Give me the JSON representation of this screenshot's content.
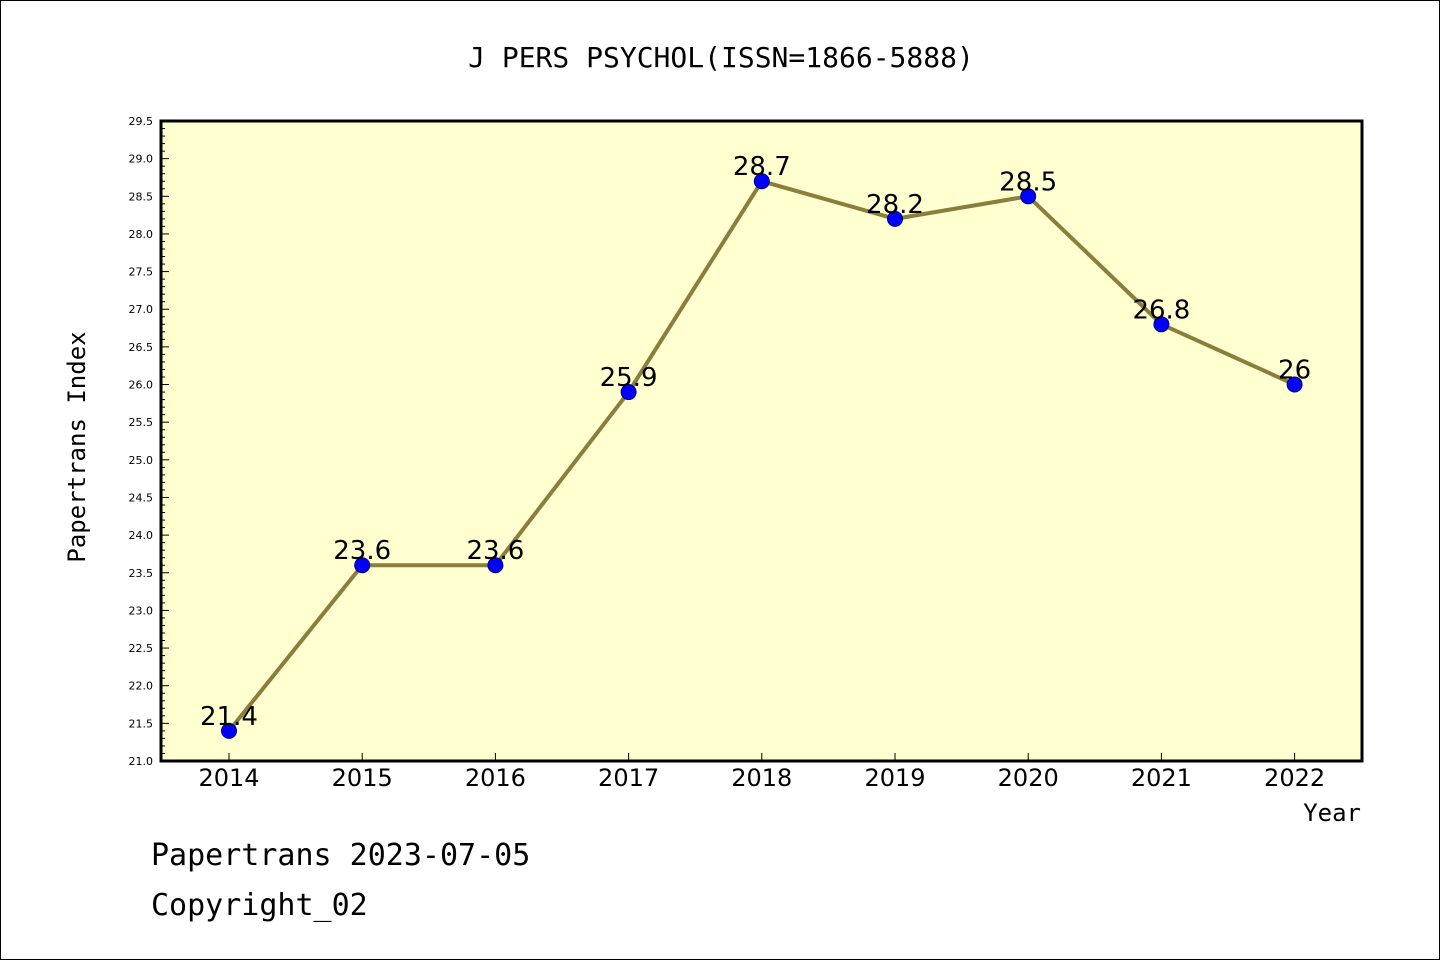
{
  "chart_data": {
    "type": "line",
    "title": "J PERS PSYCHOL(ISSN=1866-5888)",
    "xlabel": "Year",
    "ylabel": "Papertrans Index",
    "categories": [
      "2014",
      "2015",
      "2016",
      "2017",
      "2018",
      "2019",
      "2020",
      "2021",
      "2022"
    ],
    "values": [
      21.4,
      23.6,
      23.6,
      25.9,
      28.7,
      28.2,
      28.5,
      26.8,
      26
    ],
    "data_labels": [
      "21.4",
      "23.6",
      "23.6",
      "25.9",
      "28.7",
      "28.2",
      "28.5",
      "26.8",
      "26"
    ],
    "ylim": [
      21.0,
      29.5
    ],
    "yticks": [
      "21.0",
      "21.5",
      "22.0",
      "22.5",
      "23.0",
      "23.5",
      "24.0",
      "24.5",
      "25.0",
      "25.5",
      "26.0",
      "26.5",
      "27.0",
      "27.5",
      "28.0",
      "28.5",
      "29.0",
      "29.5"
    ],
    "grid": false,
    "legend": "none",
    "colors": {
      "plot_background": "#ffffd0",
      "line": "#8b7d3a",
      "marker": "#0000ff",
      "marker_edge": "#000080"
    }
  },
  "footer": {
    "line1": "Papertrans 2023-07-05",
    "line2": "Copyright_02"
  }
}
